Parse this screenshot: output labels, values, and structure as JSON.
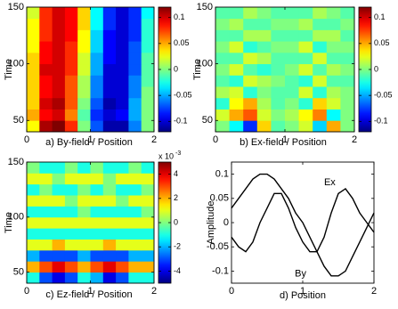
{
  "chart_data": [
    {
      "type": "heatmap",
      "caption": "a) By-field / Position",
      "ylabel": "Time",
      "colormap": "jet",
      "x": [
        0.1,
        0.3,
        0.5,
        0.7,
        0.9,
        1.1,
        1.3,
        1.5,
        1.7,
        1.9
      ],
      "y": [
        45,
        55,
        65,
        75,
        85,
        95,
        105,
        115,
        125,
        135,
        145
      ],
      "z": [
        [
          0.03,
          0.11,
          0.12,
          0.08,
          0.0,
          -0.07,
          -0.11,
          -0.11,
          -0.06,
          0.0
        ],
        [
          0.05,
          0.09,
          0.1,
          0.06,
          -0.01,
          -0.08,
          -0.1,
          -0.09,
          -0.05,
          0.0
        ],
        [
          0.04,
          0.1,
          0.11,
          0.07,
          0.0,
          -0.07,
          -0.11,
          -0.1,
          -0.05,
          0.0
        ],
        [
          0.04,
          0.09,
          0.1,
          0.07,
          0.01,
          -0.06,
          -0.1,
          -0.1,
          -0.06,
          0.0
        ],
        [
          0.04,
          0.09,
          0.1,
          0.07,
          0.01,
          -0.06,
          -0.1,
          -0.1,
          -0.06,
          -0.01
        ],
        [
          0.04,
          0.1,
          0.1,
          0.08,
          0.02,
          -0.05,
          -0.1,
          -0.1,
          -0.07,
          -0.01
        ],
        [
          0.04,
          0.09,
          0.1,
          0.08,
          0.02,
          -0.05,
          -0.09,
          -0.1,
          -0.07,
          -0.01
        ],
        [
          0.03,
          0.09,
          0.1,
          0.08,
          0.03,
          -0.04,
          -0.09,
          -0.1,
          -0.07,
          -0.02
        ],
        [
          0.03,
          0.08,
          0.1,
          0.09,
          0.03,
          -0.04,
          -0.09,
          -0.1,
          -0.08,
          -0.02
        ],
        [
          0.03,
          0.08,
          0.1,
          0.09,
          0.04,
          -0.03,
          -0.08,
          -0.1,
          -0.08,
          -0.02
        ],
        [
          0.02,
          0.08,
          0.1,
          0.09,
          0.04,
          -0.03,
          -0.08,
          -0.1,
          -0.08,
          -0.03
        ]
      ],
      "xlim": [
        0,
        2
      ],
      "ylim": [
        40,
        150
      ],
      "xticks": [
        0,
        1,
        2
      ],
      "yticks": [
        50,
        100,
        150
      ],
      "clim": [
        -0.12,
        0.12
      ],
      "cticks": [
        0.1,
        0.05,
        0,
        -0.05,
        -0.1
      ]
    },
    {
      "type": "heatmap",
      "caption": "b) Ex-field / Position",
      "ylabel": "Time",
      "colormap": "jet",
      "x": [
        0.1,
        0.3,
        0.5,
        0.7,
        0.9,
        1.1,
        1.3,
        1.5,
        1.7,
        1.9
      ],
      "y": [
        45,
        55,
        65,
        75,
        85,
        95,
        105,
        115,
        125,
        135,
        145
      ],
      "z": [
        [
          0.0,
          -0.03,
          -0.08,
          0.04,
          -0.01,
          0.0,
          0.02,
          -0.04,
          0.05,
          0.0
        ],
        [
          0.02,
          0.05,
          0.07,
          0.02,
          0.0,
          0.01,
          0.03,
          0.06,
          -0.03,
          0.0
        ],
        [
          -0.02,
          0.03,
          0.05,
          0.01,
          -0.01,
          0.0,
          -0.02,
          0.04,
          0.02,
          0.0
        ],
        [
          0.01,
          0.02,
          -0.02,
          0.0,
          -0.01,
          -0.01,
          0.02,
          -0.02,
          0.01,
          0.0
        ],
        [
          -0.01,
          -0.02,
          0.02,
          0.01,
          0.0,
          -0.01,
          -0.02,
          0.02,
          -0.01,
          -0.01
        ],
        [
          0.0,
          0.02,
          -0.01,
          -0.02,
          -0.01,
          0.0,
          0.02,
          -0.01,
          0.01,
          0.0
        ],
        [
          -0.01,
          -0.01,
          0.02,
          0.01,
          -0.01,
          -0.01,
          -0.01,
          0.02,
          -0.01,
          -0.01
        ],
        [
          0.0,
          0.02,
          -0.02,
          -0.01,
          0.0,
          0.0,
          0.02,
          -0.02,
          0.0,
          0.0
        ],
        [
          -0.01,
          -0.01,
          0.01,
          0.01,
          -0.01,
          -0.01,
          -0.01,
          0.01,
          0.01,
          -0.01
        ],
        [
          0.0,
          0.01,
          -0.01,
          -0.01,
          0.0,
          0.0,
          0.01,
          -0.01,
          -0.01,
          0.0
        ],
        [
          -0.01,
          -0.01,
          0.01,
          0.0,
          -0.01,
          -0.01,
          -0.01,
          0.01,
          0.0,
          -0.01
        ]
      ],
      "xlim": [
        0,
        2
      ],
      "ylim": [
        40,
        150
      ],
      "xticks": [
        0,
        1,
        2
      ],
      "yticks": [
        50,
        100,
        150
      ],
      "clim": [
        -0.12,
        0.12
      ],
      "cticks": [
        0.1,
        0.05,
        0,
        -0.05,
        -0.1
      ]
    },
    {
      "type": "heatmap",
      "caption": "c) Ez-field / Position",
      "ylabel": "Time",
      "colormap": "jet",
      "cbar_scale": "x 10",
      "cbar_scale_exp": "-3",
      "x": [
        0.1,
        0.3,
        0.5,
        0.7,
        0.9,
        1.1,
        1.3,
        1.5,
        1.7,
        1.9
      ],
      "y": [
        45,
        55,
        65,
        75,
        85,
        95,
        105,
        115,
        125,
        135,
        145
      ],
      "z": [
        [
          -1,
          -3,
          -4,
          -3,
          -1,
          -2,
          -4,
          -3,
          -1,
          -1
        ],
        [
          2,
          3,
          4,
          3,
          2,
          3,
          4,
          3,
          2,
          2
        ],
        [
          -2,
          -3,
          -3,
          -3,
          -2,
          -3,
          -3,
          -3,
          -2,
          -2
        ],
        [
          1,
          1,
          2,
          1,
          1,
          1,
          2,
          1,
          1,
          1
        ],
        [
          -1,
          -1,
          -1,
          -1,
          -1,
          -1,
          -1,
          -1,
          -1,
          -1
        ],
        [
          1,
          1,
          1,
          1,
          1,
          1,
          1,
          1,
          1,
          1
        ],
        [
          -1,
          -1,
          -1,
          -1,
          0,
          -1,
          -1,
          -1,
          -1,
          0
        ],
        [
          1,
          1,
          1,
          0,
          1,
          1,
          1,
          0,
          1,
          1
        ],
        [
          -1,
          0,
          -1,
          -1,
          0,
          -1,
          0,
          -1,
          -1,
          0
        ],
        [
          1,
          1,
          0,
          1,
          1,
          1,
          0,
          1,
          1,
          1
        ],
        [
          0,
          -1,
          -1,
          0,
          -1,
          0,
          -1,
          -1,
          0,
          -1
        ]
      ],
      "xlim": [
        0,
        2
      ],
      "ylim": [
        40,
        150
      ],
      "xticks": [
        0,
        1,
        2
      ],
      "yticks": [
        50,
        100,
        150
      ],
      "clim": [
        -5,
        5
      ],
      "cticks": [
        4,
        2,
        0,
        -2,
        -4
      ]
    },
    {
      "type": "line",
      "xlabel": "d) Position",
      "ylabel": "Amplitude",
      "x": [
        0,
        0.1,
        0.2,
        0.3,
        0.4,
        0.5,
        0.6,
        0.7,
        0.8,
        0.9,
        1.0,
        1.1,
        1.2,
        1.3,
        1.4,
        1.5,
        1.6,
        1.7,
        1.8,
        1.9,
        2.0
      ],
      "series": [
        {
          "name": "Ex",
          "color": "#000000",
          "values": [
            -0.03,
            -0.05,
            -0.06,
            -0.04,
            0.0,
            0.03,
            0.06,
            0.06,
            0.03,
            -0.01,
            -0.04,
            -0.06,
            -0.06,
            -0.03,
            0.02,
            0.06,
            0.07,
            0.05,
            0.02,
            0.0,
            -0.02
          ]
        },
        {
          "name": "By",
          "color": "#000000",
          "values": [
            0.03,
            0.05,
            0.07,
            0.09,
            0.1,
            0.1,
            0.09,
            0.07,
            0.05,
            0.02,
            0.0,
            -0.03,
            -0.06,
            -0.09,
            -0.11,
            -0.11,
            -0.1,
            -0.07,
            -0.04,
            -0.01,
            0.02
          ]
        }
      ],
      "xlim": [
        0,
        2
      ],
      "ylim": [
        -0.125,
        0.125
      ],
      "xticks": [
        0,
        1,
        2
      ],
      "yticks": [
        0.1,
        0.05,
        0,
        -0.05,
        -0.1
      ]
    }
  ]
}
